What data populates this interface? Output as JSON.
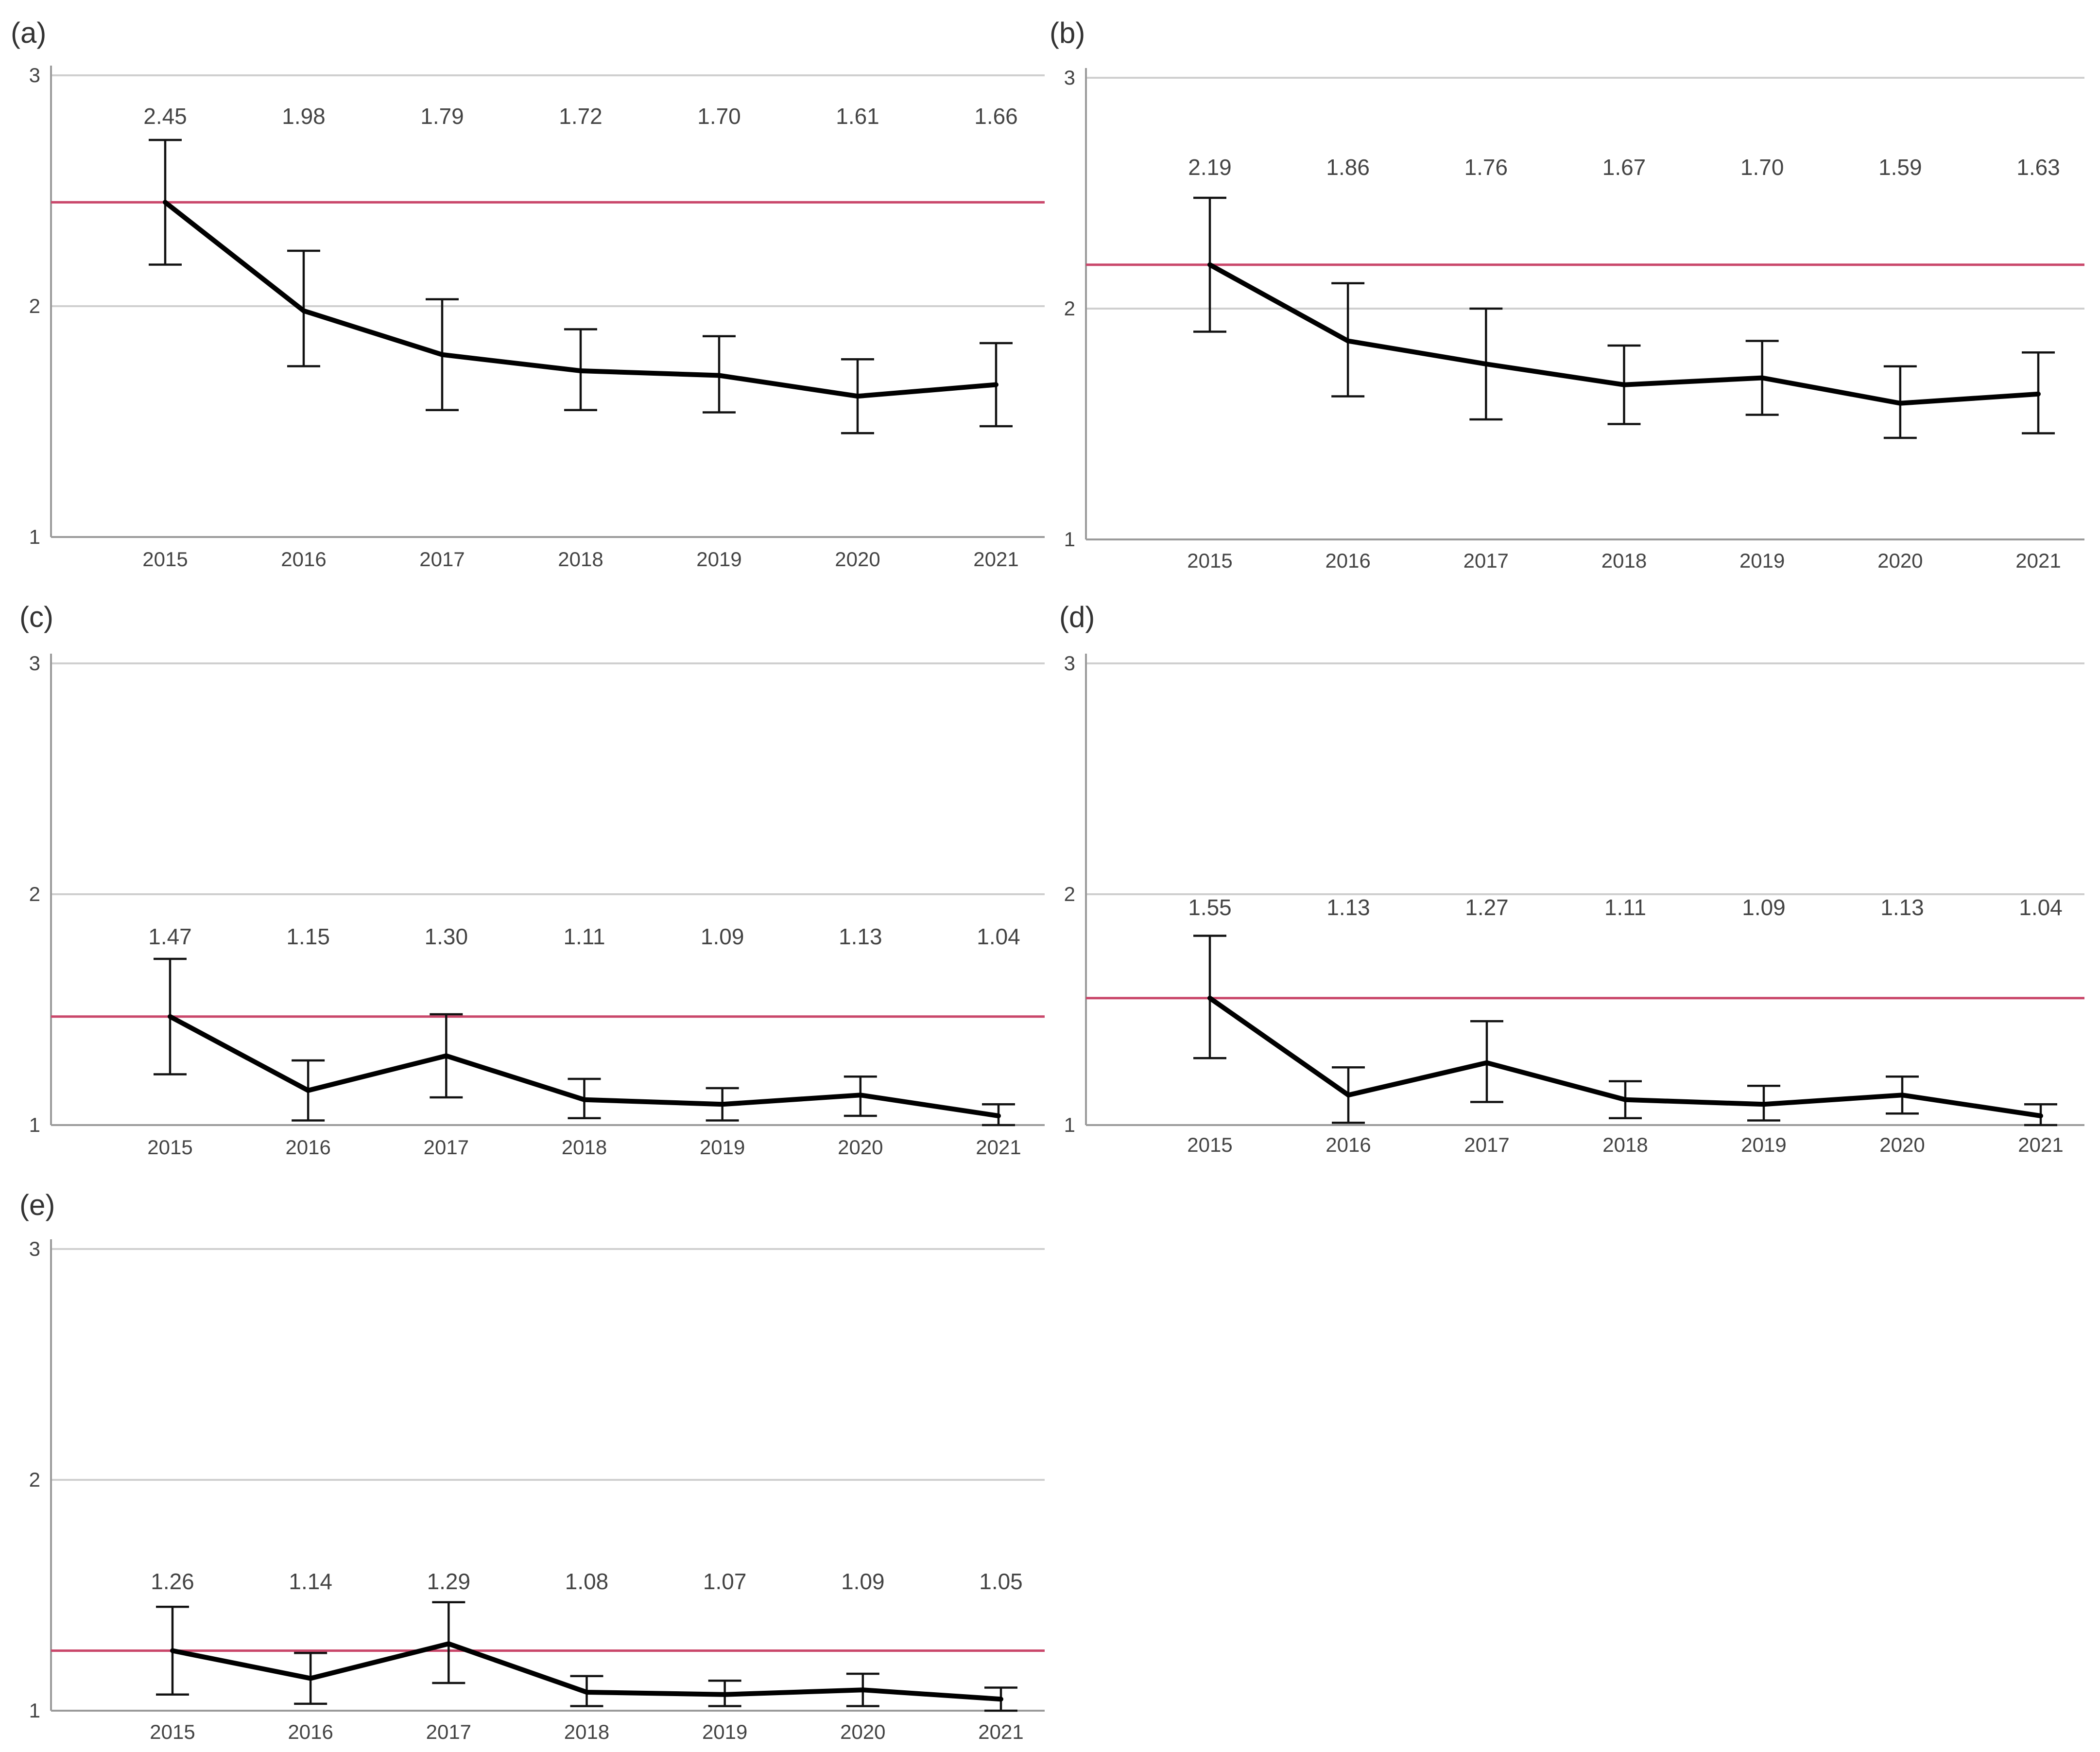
{
  "styles": {
    "reference_line_color": "#c9476a",
    "line_color": "#000000",
    "errorbar_color": "#111111"
  },
  "chart_data": [
    {
      "id": "a",
      "label": "(a)",
      "type": "line",
      "categories": [
        "2015",
        "2016",
        "2017",
        "2018",
        "2019",
        "2020",
        "2021"
      ],
      "values": [
        2.45,
        1.98,
        1.79,
        1.72,
        1.7,
        1.61,
        1.66
      ],
      "value_labels": [
        "2.45",
        "1.98",
        "1.79",
        "1.72",
        "1.70",
        "1.61",
        "1.66"
      ],
      "error_low": [
        2.18,
        1.74,
        1.55,
        1.55,
        1.54,
        1.45,
        1.48
      ],
      "error_high": [
        2.72,
        2.24,
        2.03,
        1.9,
        1.87,
        1.77,
        1.84
      ],
      "reference_line": 2.45,
      "yticks": [
        "1",
        "2",
        "3"
      ],
      "ylim": [
        1,
        3
      ],
      "grid": true,
      "title": "",
      "xlabel": "",
      "ylabel": ""
    },
    {
      "id": "b",
      "label": "(b)",
      "type": "line",
      "categories": [
        "2015",
        "2016",
        "2017",
        "2018",
        "2019",
        "2020",
        "2021"
      ],
      "values": [
        2.19,
        1.86,
        1.76,
        1.67,
        1.7,
        1.59,
        1.63
      ],
      "value_labels": [
        "2.19",
        "1.86",
        "1.76",
        "1.67",
        "1.70",
        "1.59",
        "1.63"
      ],
      "error_low": [
        1.9,
        1.62,
        1.52,
        1.5,
        1.54,
        1.44,
        1.46
      ],
      "error_high": [
        2.48,
        2.11,
        2.0,
        1.84,
        1.86,
        1.75,
        1.81
      ],
      "reference_line": 2.19,
      "yticks": [
        "1",
        "2",
        "3"
      ],
      "ylim": [
        1,
        3
      ],
      "grid": true,
      "title": "",
      "xlabel": "",
      "ylabel": ""
    },
    {
      "id": "c",
      "label": "(c)",
      "type": "line",
      "categories": [
        "2015",
        "2016",
        "2017",
        "2018",
        "2019",
        "2020",
        "2021"
      ],
      "values": [
        1.47,
        1.15,
        1.3,
        1.11,
        1.09,
        1.13,
        1.04
      ],
      "value_labels": [
        "1.47",
        "1.15",
        "1.30",
        "1.11",
        "1.09",
        "1.13",
        "1.04"
      ],
      "error_low": [
        1.22,
        1.02,
        1.12,
        1.03,
        1.02,
        1.04,
        1.0
      ],
      "error_high": [
        1.72,
        1.28,
        1.48,
        1.2,
        1.16,
        1.21,
        1.09
      ],
      "reference_line": 1.47,
      "yticks": [
        "1",
        "2",
        "3"
      ],
      "ylim": [
        1,
        3
      ],
      "grid": true,
      "title": "",
      "xlabel": "",
      "ylabel": ""
    },
    {
      "id": "d",
      "label": "(d)",
      "type": "line",
      "categories": [
        "2015",
        "2016",
        "2017",
        "2018",
        "2019",
        "2020",
        "2021"
      ],
      "values": [
        1.55,
        1.13,
        1.27,
        1.11,
        1.09,
        1.13,
        1.04
      ],
      "value_labels": [
        "1.55",
        "1.13",
        "1.27",
        "1.11",
        "1.09",
        "1.13",
        "1.04"
      ],
      "error_low": [
        1.29,
        1.01,
        1.1,
        1.03,
        1.02,
        1.05,
        1.0
      ],
      "error_high": [
        1.82,
        1.25,
        1.45,
        1.19,
        1.17,
        1.21,
        1.09
      ],
      "reference_line": 1.55,
      "yticks": [
        "1",
        "2",
        "3"
      ],
      "ylim": [
        1,
        3
      ],
      "grid": true,
      "title": "",
      "xlabel": "",
      "ylabel": ""
    },
    {
      "id": "e",
      "label": "(e)",
      "type": "line",
      "categories": [
        "2015",
        "2016",
        "2017",
        "2018",
        "2019",
        "2020",
        "2021"
      ],
      "values": [
        1.26,
        1.14,
        1.29,
        1.08,
        1.07,
        1.09,
        1.05
      ],
      "value_labels": [
        "1.26",
        "1.14",
        "1.29",
        "1.08",
        "1.07",
        "1.09",
        "1.05"
      ],
      "error_low": [
        1.07,
        1.03,
        1.12,
        1.02,
        1.02,
        1.02,
        1.0
      ],
      "error_high": [
        1.45,
        1.25,
        1.47,
        1.15,
        1.13,
        1.16,
        1.1
      ],
      "reference_line": 1.26,
      "yticks": [
        "1",
        "2",
        "3"
      ],
      "ylim": [
        1,
        3
      ],
      "grid": true,
      "title": "",
      "xlabel": "",
      "ylabel": ""
    }
  ]
}
